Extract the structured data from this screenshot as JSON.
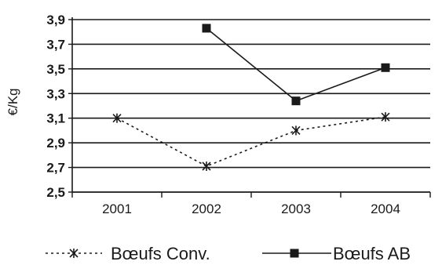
{
  "chart_data": {
    "type": "line",
    "title": "",
    "xlabel": "",
    "ylabel": "€/Kg",
    "categories": [
      "2001",
      "2002",
      "2003",
      "2004"
    ],
    "ylim": [
      2.5,
      3.9
    ],
    "yticks": [
      "2,5",
      "2,7",
      "2,9",
      "3,1",
      "3,3",
      "3,5",
      "3,7",
      "3,9"
    ],
    "grid": true,
    "legend_position": "bottom",
    "series": [
      {
        "name": "Bœufs Conv.",
        "values": [
          3.1,
          2.71,
          3.0,
          3.11
        ],
        "style": "dotted",
        "marker": "asterisk",
        "color": "#1a1a1a"
      },
      {
        "name": "Bœufs AB",
        "values": [
          null,
          3.83,
          3.24,
          3.51
        ],
        "style": "solid",
        "marker": "square",
        "color": "#1a1a1a"
      }
    ]
  }
}
